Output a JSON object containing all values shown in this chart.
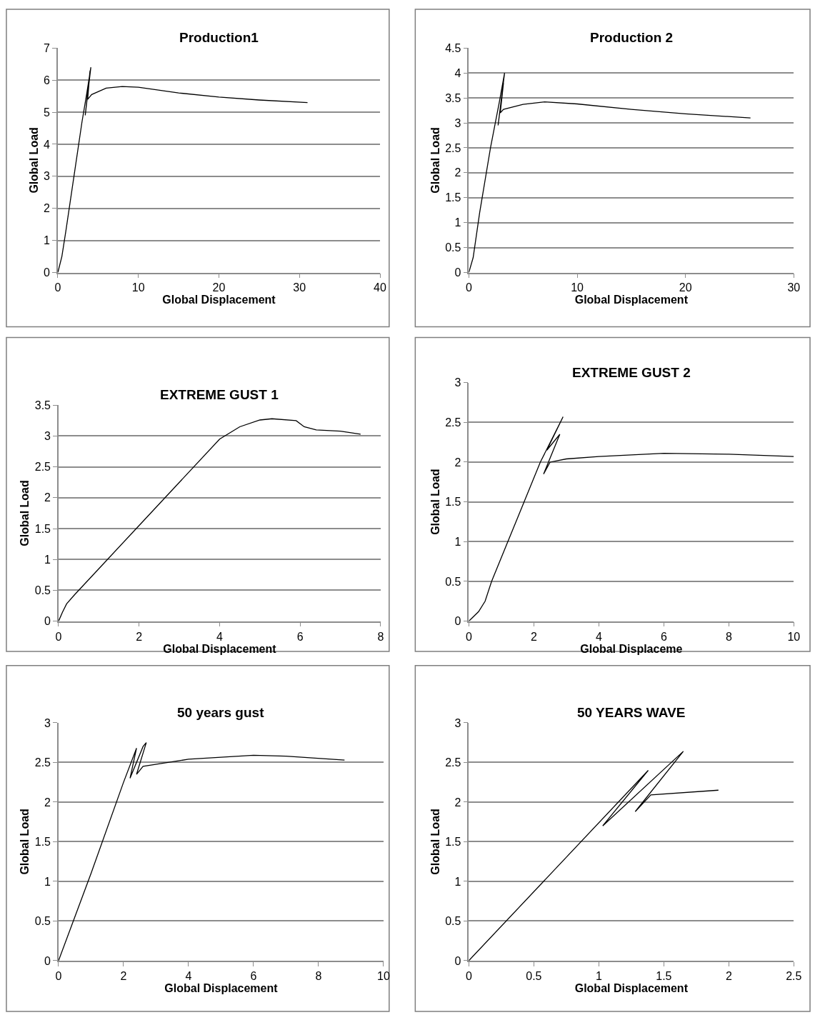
{
  "chart_data": [
    {
      "type": "line",
      "title": "Production1",
      "xlabel": "Global Displacement",
      "ylabel": "Global Load",
      "color": "#000000",
      "x": [
        0,
        0.5,
        1.0,
        2.0,
        3.0,
        3.6,
        4.1,
        3.4,
        4.0,
        3.7,
        4.2,
        6,
        8,
        10,
        15,
        20,
        25,
        31
      ],
      "values": [
        0,
        0.5,
        1.3,
        3.0,
        4.7,
        5.6,
        6.4,
        4.9,
        6.3,
        5.4,
        5.55,
        5.75,
        5.8,
        5.78,
        5.6,
        5.47,
        5.38,
        5.3
      ],
      "xlim": [
        0,
        40
      ],
      "xticks": [
        0,
        10,
        20,
        30,
        40
      ],
      "ylim": [
        0,
        7
      ],
      "yticks": [
        0,
        1,
        2,
        3,
        4,
        5,
        6,
        7
      ],
      "grid": "y"
    },
    {
      "type": "line",
      "title": "Production 2",
      "xlabel": "Global Displacement",
      "ylabel": "Global Load",
      "color": "#000000",
      "x": [
        0,
        0.4,
        1,
        2,
        2.8,
        3.3,
        2.7,
        3.2,
        2.9,
        3.2,
        5,
        7,
        10,
        15,
        20,
        26
      ],
      "values": [
        0,
        0.3,
        1.2,
        2.5,
        3.4,
        4.0,
        2.95,
        3.8,
        3.2,
        3.27,
        3.37,
        3.42,
        3.38,
        3.27,
        3.18,
        3.1
      ],
      "xlim": [
        0,
        30
      ],
      "xticks": [
        0,
        10,
        20,
        30
      ],
      "ylim": [
        0,
        4.5
      ],
      "yticks": [
        0,
        0.5,
        1,
        1.5,
        2,
        2.5,
        3,
        3.5,
        4,
        4.5
      ],
      "grid": "y"
    },
    {
      "type": "line",
      "title": "EXTREME GUST 1",
      "xlabel": "Global Displacement",
      "ylabel": "Global Load",
      "color": "#000000",
      "x": [
        0,
        0.1,
        0.2,
        0.4,
        1,
        2,
        3,
        4,
        4.5,
        5,
        5.3,
        5.9,
        6.1,
        6.4,
        7,
        7.5
      ],
      "values": [
        0,
        0.15,
        0.28,
        0.43,
        0.85,
        1.55,
        2.25,
        2.95,
        3.15,
        3.26,
        3.28,
        3.25,
        3.15,
        3.1,
        3.08,
        3.03
      ],
      "xlim": [
        0,
        8
      ],
      "xticks": [
        0,
        2,
        4,
        6,
        8
      ],
      "ylim": [
        0,
        3.5
      ],
      "yticks": [
        0,
        0.5,
        1,
        1.5,
        2,
        2.5,
        3,
        3.5
      ],
      "grid": "y"
    },
    {
      "type": "line",
      "title": "EXTREME GUST 2",
      "xlabel": "Global Displaceme",
      "ylabel": "Global Load",
      "color": "#000000",
      "x": [
        0,
        0.3,
        0.5,
        0.7,
        1.5,
        2.2,
        2.9,
        2.4,
        2.8,
        2.3,
        2.5,
        3,
        4,
        6,
        8,
        10
      ],
      "values": [
        0,
        0.12,
        0.25,
        0.5,
        1.3,
        2.0,
        2.57,
        2.15,
        2.35,
        1.85,
        2.0,
        2.04,
        2.07,
        2.11,
        2.1,
        2.07
      ],
      "xlim": [
        0,
        10
      ],
      "xticks": [
        0,
        2,
        4,
        6,
        8,
        10
      ],
      "ylim": [
        0,
        3
      ],
      "yticks": [
        0,
        0.5,
        1,
        1.5,
        2,
        2.5,
        3
      ],
      "grid": "y"
    },
    {
      "type": "line",
      "title": "50 years gust",
      "xlabel": "Global Displacement",
      "ylabel": "Global Load",
      "color": "#000000",
      "x": [
        0,
        1,
        2,
        2.4,
        2.2,
        2.6,
        2.7,
        2.4,
        2.6,
        4,
        6,
        7,
        8.8
      ],
      "values": [
        0,
        1.1,
        2.25,
        2.68,
        2.3,
        2.7,
        2.75,
        2.35,
        2.45,
        2.54,
        2.59,
        2.58,
        2.53
      ],
      "xlim": [
        0,
        10
      ],
      "xticks": [
        0,
        2,
        4,
        6,
        8,
        10
      ],
      "ylim": [
        0,
        3
      ],
      "yticks": [
        0,
        0.5,
        1,
        1.5,
        2,
        2.5,
        3
      ],
      "grid": "y"
    },
    {
      "type": "line",
      "title": "50 YEARS WAVE",
      "xlabel": "Global Displacement",
      "ylabel": "Global Load",
      "color": "#000000",
      "x": [
        0,
        1.38,
        1.03,
        1.65,
        1.28,
        1.4,
        1.92
      ],
      "values": [
        0,
        2.4,
        1.7,
        2.64,
        1.88,
        2.09,
        2.15
      ],
      "xlim": [
        0,
        2.5
      ],
      "xticks": [
        0,
        0.5,
        1,
        1.5,
        2,
        2.5
      ],
      "ylim": [
        0,
        3
      ],
      "yticks": [
        0,
        0.5,
        1,
        1.5,
        2,
        2.5,
        3
      ],
      "grid": "y"
    }
  ]
}
